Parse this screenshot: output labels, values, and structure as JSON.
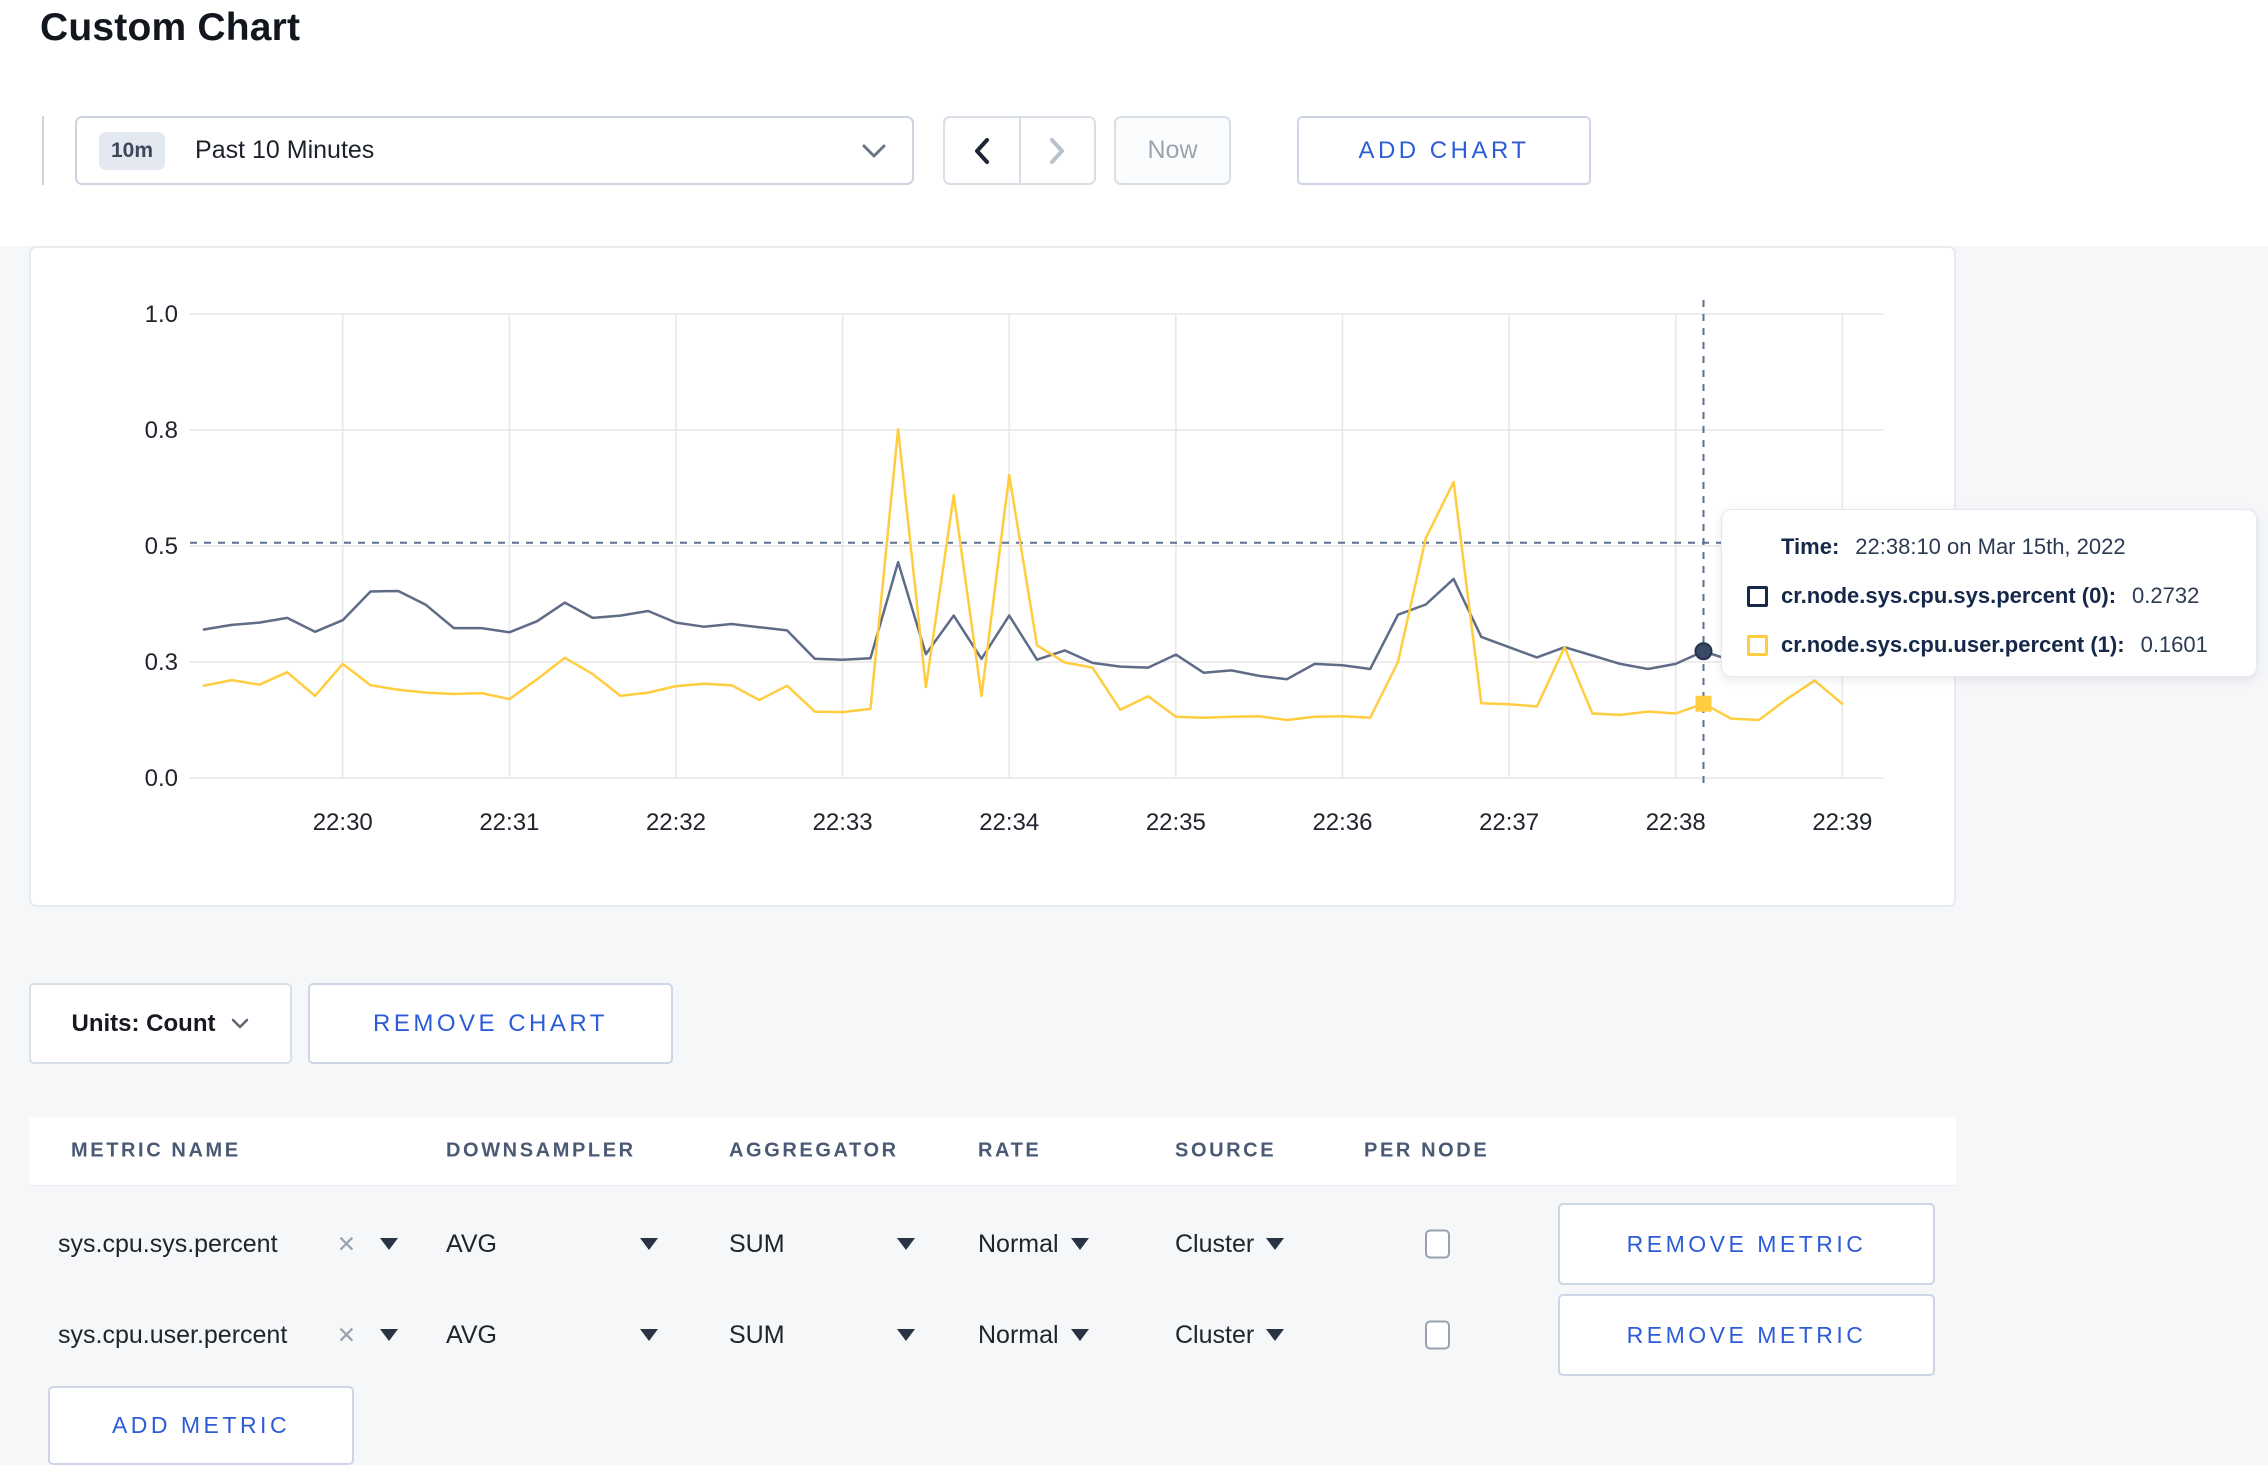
{
  "page": {
    "title": "Custom Chart"
  },
  "toolbar": {
    "time_badge": "10m",
    "time_label": "Past 10 Minutes",
    "now_label": "Now",
    "add_chart_label": "ADD CHART",
    "icons": [
      "chevron-down-icon",
      "chevron-left-icon",
      "chevron-right-icon"
    ]
  },
  "chart_data": {
    "type": "line",
    "title": "",
    "xlabel": "",
    "ylabel": "",
    "grid": true,
    "legend_position": "tooltip",
    "ylim": [
      0,
      1.03
    ],
    "y_ticks": [
      {
        "value": 0,
        "label": "0.0"
      },
      {
        "value": 0.25,
        "label": "0.3"
      },
      {
        "value": 0.5,
        "label": "0.5"
      },
      {
        "value": 0.75,
        "label": "0.8"
      },
      {
        "value": 1,
        "label": "1.0"
      }
    ],
    "x_domain": [
      "22:29:05",
      "22:39:15"
    ],
    "x_ticks": [
      "22:30",
      "22:31",
      "22:32",
      "22:33",
      "22:34",
      "22:35",
      "22:36",
      "22:37",
      "22:38",
      "22:39"
    ],
    "times": [
      "22:29:10",
      "22:29:20",
      "22:29:30",
      "22:29:40",
      "22:29:50",
      "22:30:00",
      "22:30:10",
      "22:30:20",
      "22:30:30",
      "22:30:40",
      "22:30:50",
      "22:31:00",
      "22:31:10",
      "22:31:20",
      "22:31:30",
      "22:31:40",
      "22:31:50",
      "22:32:00",
      "22:32:10",
      "22:32:20",
      "22:32:30",
      "22:32:40",
      "22:32:50",
      "22:33:00",
      "22:33:10",
      "22:33:20",
      "22:33:30",
      "22:33:40",
      "22:33:50",
      "22:34:00",
      "22:34:10",
      "22:34:20",
      "22:34:30",
      "22:34:40",
      "22:34:50",
      "22:35:00",
      "22:35:10",
      "22:35:20",
      "22:35:30",
      "22:35:40",
      "22:35:50",
      "22:36:00",
      "22:36:10",
      "22:36:20",
      "22:36:30",
      "22:36:40",
      "22:36:50",
      "22:37:00",
      "22:37:10",
      "22:37:20",
      "22:37:30",
      "22:37:40",
      "22:37:50",
      "22:38:00",
      "22:38:10",
      "22:38:20",
      "22:38:30",
      "22:38:40",
      "22:38:50",
      "22:39:00"
    ],
    "series": [
      {
        "name": "cr.node.sys.cpu.sys.percent",
        "color": "#5f6c87",
        "values": [
          0.32,
          0.33,
          0.335,
          0.345,
          0.315,
          0.34,
          0.402,
          0.403,
          0.373,
          0.323,
          0.323,
          0.314,
          0.338,
          0.378,
          0.345,
          0.35,
          0.36,
          0.335,
          0.326,
          0.332,
          0.325,
          0.318,
          0.257,
          0.255,
          0.258,
          0.465,
          0.267,
          0.35,
          0.257,
          0.35,
          0.255,
          0.275,
          0.248,
          0.24,
          0.238,
          0.266,
          0.227,
          0.232,
          0.22,
          0.213,
          0.246,
          0.243,
          0.235,
          0.352,
          0.374,
          0.429,
          0.304,
          0.282,
          0.26,
          0.282,
          0.264,
          0.246,
          0.235,
          0.246,
          0.2732,
          0.253,
          0.258,
          0.264,
          0.27,
          0.3
        ]
      },
      {
        "name": "cr.node.sys.cpu.user.percent",
        "color": "#ffcd3f",
        "values": [
          0.199,
          0.211,
          0.201,
          0.228,
          0.177,
          0.246,
          0.2,
          0.19,
          0.184,
          0.181,
          0.183,
          0.17,
          0.213,
          0.259,
          0.224,
          0.177,
          0.184,
          0.198,
          0.203,
          0.2,
          0.168,
          0.199,
          0.143,
          0.142,
          0.149,
          0.752,
          0.196,
          0.609,
          0.177,
          0.653,
          0.286,
          0.249,
          0.238,
          0.147,
          0.176,
          0.132,
          0.13,
          0.132,
          0.133,
          0.125,
          0.132,
          0.133,
          0.13,
          0.25,
          0.517,
          0.638,
          0.161,
          0.159,
          0.154,
          0.282,
          0.139,
          0.136,
          0.143,
          0.139,
          0.1601,
          0.128,
          0.125,
          0.17,
          0.21,
          0.16
        ]
      }
    ],
    "crosshair": {
      "time": "22:38:10",
      "y_value": 0.507
    },
    "hover_points": [
      {
        "series": 0,
        "time": "22:38:10",
        "value": 0.2732,
        "marker": "circle"
      },
      {
        "series": 1,
        "time": "22:38:10",
        "value": 0.1601,
        "marker": "square"
      }
    ]
  },
  "tooltip": {
    "time_label": "Time:",
    "time_value": "22:38:10 on Mar 15th, 2022",
    "rows": [
      {
        "label": "cr.node.sys.cpu.sys.percent (0):",
        "value": "0.2732",
        "color": "#152849"
      },
      {
        "label": "cr.node.sys.cpu.user.percent (1):",
        "value": "0.1601",
        "color": "#ffcd3f"
      }
    ]
  },
  "chart_footer": {
    "units_label": "Units: Count",
    "remove_chart_label": "REMOVE CHART"
  },
  "metrics_table": {
    "headers": [
      "METRIC NAME",
      "DOWNSAMPLER",
      "AGGREGATOR",
      "RATE",
      "SOURCE",
      "PER NODE"
    ],
    "rows": [
      {
        "metric": "sys.cpu.sys.percent",
        "downsampler": "AVG",
        "aggregator": "SUM",
        "rate": "Normal",
        "source": "Cluster",
        "per_node_checked": false,
        "remove_label": "REMOVE METRIC"
      },
      {
        "metric": "sys.cpu.user.percent",
        "downsampler": "AVG",
        "aggregator": "SUM",
        "rate": "Normal",
        "source": "Cluster",
        "per_node_checked": false,
        "remove_label": "REMOVE METRIC"
      }
    ],
    "add_metric_label": "ADD METRIC"
  },
  "icons": {
    "x_glyph": "✕"
  },
  "colors": {
    "accent_blue": "#2d5cd7",
    "series_sys": "#5f6c87",
    "series_user": "#ffcd3f",
    "crosshair": "#5b718d",
    "grid": "#e7e7e7",
    "tick_text": "#20242c"
  }
}
